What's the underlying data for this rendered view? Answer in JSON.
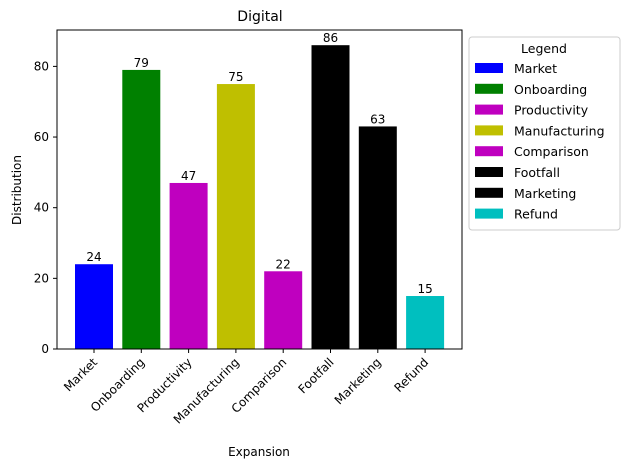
{
  "chart_data": {
    "type": "bar",
    "title": "Digital",
    "xlabel": "Expansion",
    "ylabel": "Distribution",
    "categories": [
      "Market",
      "Onboarding",
      "Productivity",
      "Manufacturing",
      "Comparison",
      "Footfall",
      "Marketing",
      "Refund"
    ],
    "values": [
      24,
      79,
      47,
      75,
      22,
      86,
      63,
      15
    ],
    "colors": [
      "#0000ff",
      "#008000",
      "#bf00bf",
      "#bfbf00",
      "#bf00bf",
      "#000000",
      "#000000",
      "#00bfbf"
    ],
    "ylim": [
      0,
      90.3
    ],
    "yticks": [
      0,
      20,
      40,
      60,
      80
    ],
    "grid": false,
    "legend": {
      "title": "Legend",
      "placement": "outside-right-top",
      "entries": [
        "Market",
        "Onboarding",
        "Productivity",
        "Manufacturing",
        "Comparison",
        "Footfall",
        "Marketing",
        "Refund"
      ]
    }
  }
}
